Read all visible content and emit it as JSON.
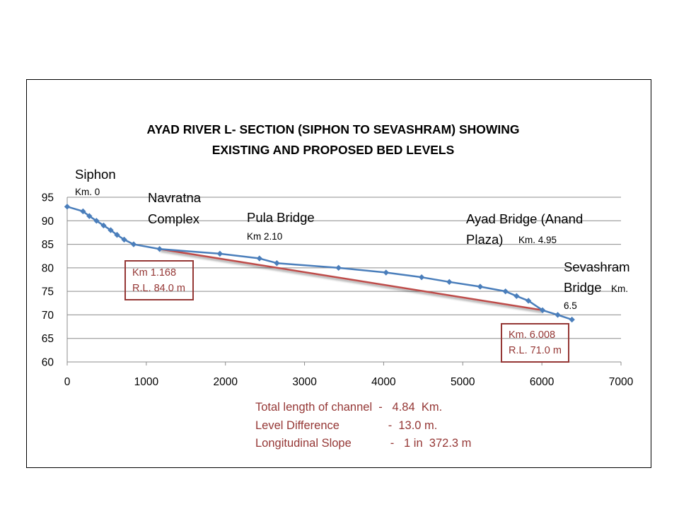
{
  "chart_data": {
    "type": "line",
    "title": [
      "AYAD  RIVER  L- SECTION  (SIPHON TO SEVASHRAM) SHOWING",
      "EXISTING AND PROPOSED  BED  LEVELS"
    ],
    "xlim": [
      0,
      7000
    ],
    "ylim": [
      60,
      95
    ],
    "x_ticks": [
      "0",
      "1000",
      "2000",
      "3000",
      "4000",
      "5000",
      "6000",
      "7000"
    ],
    "y_ticks": [
      "95",
      "90",
      "85",
      "80",
      "75",
      "70",
      "65",
      "60"
    ],
    "grid": "horizontal",
    "colors": {
      "existing": "#4a7ebb",
      "proposed": "#be4b48",
      "annotation": "#953735"
    },
    "series": [
      {
        "points": [
          [
            0,
            93
          ],
          [
            200,
            92
          ],
          [
            280,
            91
          ],
          [
            370,
            90
          ],
          [
            460,
            89
          ],
          [
            550,
            88
          ],
          [
            630,
            87
          ],
          [
            720,
            86
          ],
          [
            840,
            85
          ],
          [
            1168,
            84
          ],
          [
            1930,
            83
          ],
          [
            2430,
            82
          ],
          [
            2650,
            81
          ],
          [
            3430,
            80
          ],
          [
            4030,
            79
          ],
          [
            4480,
            78
          ],
          [
            4830,
            77
          ],
          [
            5220,
            76
          ],
          [
            5540,
            75
          ],
          [
            5680,
            74
          ],
          [
            5830,
            73
          ],
          [
            6008,
            71
          ],
          [
            6200,
            70
          ],
          [
            6380,
            69
          ]
        ]
      },
      {
        "points": [
          [
            1168,
            84
          ],
          [
            6008,
            71
          ]
        ]
      }
    ],
    "annotations": {
      "siphon": {
        "name": "Siphon",
        "km": "Km. 0"
      },
      "navratna": {
        "line1": "Navratna",
        "line2": "Complex"
      },
      "pula": {
        "name": "Pula Bridge",
        "km": "Km 2.10"
      },
      "ayad": {
        "line1": "Ayad Bridge (Anand",
        "line2": "Plaza)",
        "km": "Km. 4.95"
      },
      "sevashram": {
        "line1": "Sevashram",
        "line2": "Bridge",
        "km1": "Km.",
        "km2": "6.5"
      },
      "box_start": {
        "line1": "Km  1.168",
        "line2": "R.L. 84.0 m"
      },
      "box_end": {
        "line1": "Km.  6.008",
        "line2": "R.L. 71.0 m"
      }
    },
    "notes": [
      "Total length of channel  -   4.84  Km.",
      "Level Difference               -  13.0 m.",
      "Longitudinal Slope            -   1 in  372.3 m"
    ]
  }
}
